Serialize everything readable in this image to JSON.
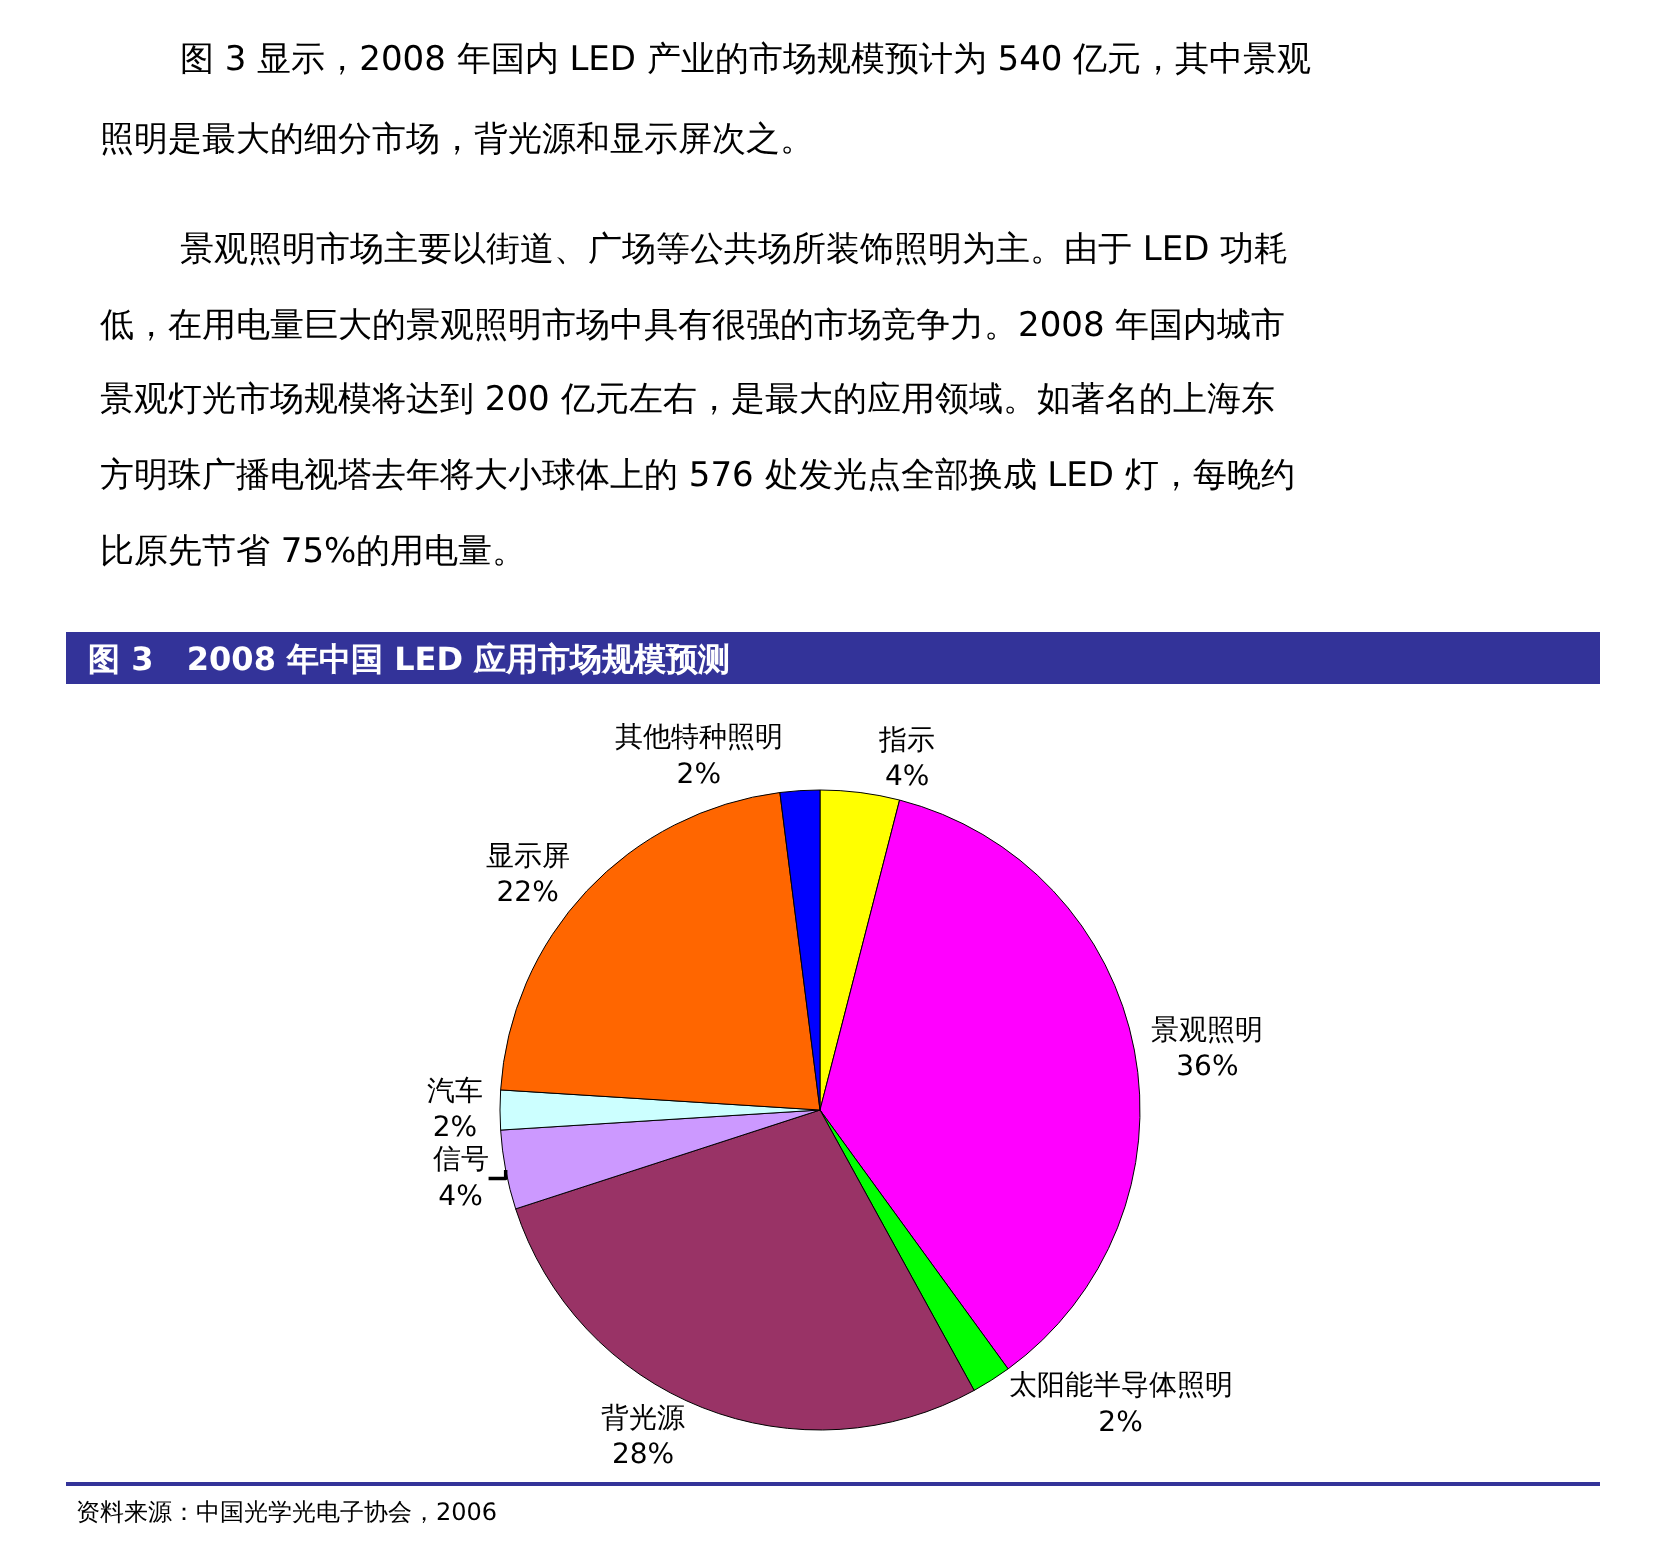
{
  "chart_data": {
    "type": "pie",
    "title": "图 3   2008 年中国 LED 应用市场规模预测",
    "categories": [
      "指示",
      "景观照明",
      "太阳能半导体照明",
      "背光源",
      "信号",
      "汽车",
      "显示屏",
      "其他特种照明"
    ],
    "values": [
      4,
      36,
      2,
      28,
      4,
      2,
      22,
      2
    ],
    "value_labels": [
      "4%",
      "36%",
      "2%",
      "28%",
      "4%",
      "2%",
      "22%",
      "2%"
    ],
    "colors": [
      "#ffff00",
      "#ff00ff",
      "#00ff00",
      "#993366",
      "#cc99ff",
      "#ccffff",
      "#ff6600",
      "#0000ff"
    ],
    "legend": false,
    "annotations": [
      "图 3 显示，2008 年国内 LED 产业的市场规模预计为 540 亿元，其中景观",
      "照明是最大的细分市场，背光源和显示屏次之。",
      "景观照明市场主要以街道、广场等公共场所装饰照明为主。由于 LED 功耗",
      "低，在用电量巨大的景观照明市场中具有很强的市场竞争力。2008 年国内城市",
      "景观灯光市场规模将达到 200 亿元左右，是最大的应用领域。如著名的上海东",
      "方明珠广播电视塔去年将大小球体上的 576 处发光点全部换成 LED 灯，每晚约",
      "比原先节省 75%的用电量。",
      "资料来源：中国光学光电子协会，2006"
    ]
  }
}
